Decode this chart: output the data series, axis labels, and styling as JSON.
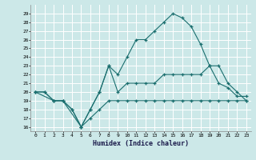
{
  "title": "",
  "xlabel": "Humidex (Indice chaleur)",
  "bg_color": "#cce8e8",
  "grid_color": "#ffffff",
  "line_color": "#1a6e6e",
  "xlim": [
    -0.5,
    23.5
  ],
  "ylim": [
    15.5,
    30
  ],
  "yticks": [
    16,
    17,
    18,
    19,
    20,
    21,
    22,
    23,
    24,
    25,
    26,
    27,
    28,
    29
  ],
  "xticks": [
    0,
    1,
    2,
    3,
    4,
    5,
    6,
    7,
    8,
    9,
    10,
    11,
    12,
    13,
    14,
    15,
    16,
    17,
    18,
    19,
    20,
    21,
    22,
    23
  ],
  "curve1_x": [
    0,
    1,
    2,
    3,
    4,
    5,
    6,
    7,
    8,
    9,
    10,
    11,
    12,
    13,
    14,
    15,
    16,
    17,
    18,
    19,
    20,
    21,
    22,
    23
  ],
  "curve1_y": [
    20,
    20,
    19,
    19,
    18,
    16,
    17,
    18,
    19,
    19,
    19,
    19,
    19,
    19,
    19,
    19,
    19,
    19,
    19,
    19,
    19,
    19,
    19,
    19
  ],
  "curve2_x": [
    0,
    2,
    3,
    5,
    6,
    7,
    8,
    9,
    10,
    11,
    12,
    13,
    14,
    15,
    16,
    17,
    18,
    19,
    20,
    21,
    22,
    23
  ],
  "curve2_y": [
    20,
    19,
    19,
    16,
    18,
    20,
    23,
    20,
    21,
    21,
    21,
    21,
    22,
    22,
    22,
    22,
    22,
    23,
    23,
    21,
    20,
    19
  ],
  "curve3_x": [
    0,
    1,
    2,
    3,
    4,
    5,
    6,
    7,
    8,
    9,
    10,
    11,
    12,
    13,
    14,
    15,
    16,
    17,
    18,
    19,
    20,
    21,
    22,
    23
  ],
  "curve3_y": [
    20,
    20,
    19,
    19,
    18,
    16,
    18,
    20,
    23,
    22,
    24,
    26,
    26,
    27,
    28,
    29,
    28.5,
    27.5,
    25.5,
    23,
    21,
    20.5,
    19.5,
    19.5
  ]
}
